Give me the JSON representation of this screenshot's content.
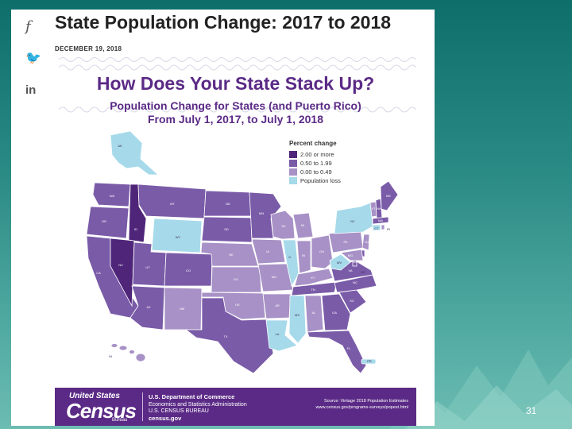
{
  "page": {
    "title": "State Population Change: 2017 to 2018",
    "date": "DECEMBER 19, 2018",
    "slide_number": "31"
  },
  "share": [
    {
      "icon": "facebook-icon",
      "glyph": "f"
    },
    {
      "icon": "twitter-icon",
      "glyph": "🐦"
    },
    {
      "icon": "linkedin-icon",
      "glyph": "in"
    }
  ],
  "graphic": {
    "headline": "How Does Your State Stack Up?",
    "subhead_line1": "Population Change for States (and Puerto Rico)",
    "subhead_line2": "From July 1, 2017, to July 1, 2018"
  },
  "legend": {
    "title": "Percent change",
    "items": [
      {
        "label": "2.00 or more",
        "color": "#4f2579"
      },
      {
        "label": "0.50 to 1.99",
        "color": "#7a5ba8"
      },
      {
        "label": "0.00 to 0.49",
        "color": "#a791c6"
      },
      {
        "label": "Population loss",
        "color": "#a6daea"
      }
    ]
  },
  "states": {
    "WA": "WA",
    "OR": "OR",
    "CA": "CA",
    "NV": "NV",
    "ID": "ID",
    "MT": "MT",
    "WY": "WY",
    "UT": "UT",
    "AZ": "AZ",
    "CO": "CO",
    "NM": "NM",
    "ND": "ND",
    "SD": "SD",
    "NE": "NE",
    "KS": "KS",
    "OK": "OK",
    "TX": "TX",
    "MN": "MN",
    "IA": "IA",
    "MO": "MO",
    "AR": "AR",
    "LA": "LA",
    "WI": "WI",
    "IL": "IL",
    "MS": "MS",
    "MI": "MI",
    "IN": "IN",
    "KY": "KY",
    "TN": "TN",
    "AL": "AL",
    "OH": "OH",
    "GA": "GA",
    "FL": "FL",
    "SC": "SC",
    "NC": "NC",
    "VA": "VA",
    "WV": "WV",
    "PA": "PA",
    "NY": "NY",
    "VT": "VT",
    "NH": "NH",
    "ME": "ME",
    "MA": "MA",
    "RI": "RI",
    "CT": "CT",
    "NJ": "NJ",
    "DE": "DE",
    "MD": "MD",
    "DC": "DC",
    "AK": "AK",
    "HI": "HI",
    "PR": "PR"
  },
  "footer": {
    "logo_top": "United States",
    "logo_main": "Census",
    "logo_bottom": "Bureau",
    "dept1": "U.S. Department of Commerce",
    "dept2": "Economics and Statistics Administration",
    "dept3": "U.S. CENSUS BUREAU",
    "dept4": "census.gov",
    "source1": "Source: Vintage 2018 Population Estimates",
    "source2": "www.census.gov/programs-surveys/popest.html"
  },
  "colors": {
    "cat1": "#4f2579",
    "cat2": "#7a5ba8",
    "cat3": "#a791c6",
    "loss": "#a6daea",
    "brand": "#5b2a86"
  }
}
